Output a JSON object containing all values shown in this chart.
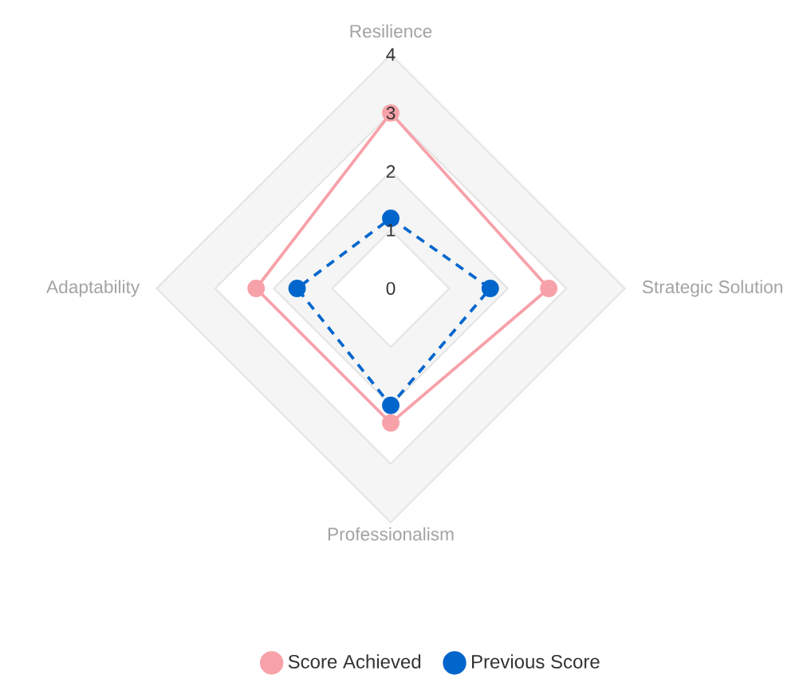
{
  "chart_data": {
    "type": "radar",
    "categories": [
      "Resilience",
      "Strategic Solution",
      "Professionalism",
      "Adaptability"
    ],
    "series": [
      {
        "name": "Score Achieved",
        "color": "#f7a1a9",
        "values": [
          3.0,
          2.7,
          2.3,
          2.3
        ],
        "line_style": "solid"
      },
      {
        "name": "Previous Score",
        "color": "#0066cc",
        "values": [
          1.2,
          1.7,
          2.0,
          1.6
        ],
        "line_style": "dashed"
      }
    ],
    "ylim": [
      0,
      4
    ],
    "yticks": [
      0,
      1,
      2,
      3,
      4
    ],
    "grid": true,
    "marker": "circle",
    "legend": "bottom"
  }
}
